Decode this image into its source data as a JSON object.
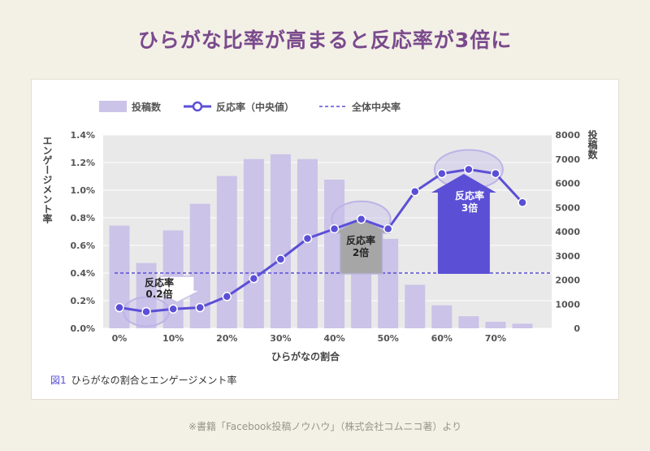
{
  "headline": "ひらがな比率が高まると反応率が3倍に",
  "caption": {
    "fig": "図1",
    "text": "ひらがなの割合とエンゲージメント率"
  },
  "footnote": "※書籍「Facebook投稿ノウハウ」（株式会社コムニコ著）より",
  "annotations": [
    {
      "id": "a1",
      "line1": "反応率",
      "line2": "0.2倍"
    },
    {
      "id": "a2",
      "line1": "反応率",
      "line2": "2倍"
    },
    {
      "id": "a3",
      "line1": "反応率",
      "line2": "3倍"
    }
  ],
  "colors": {
    "bar": "#cbc3e8",
    "line": "#5b4fd6",
    "median": "#5b4fd6",
    "title": "#7a4a8c",
    "plot_bg": "#e9e9e9"
  },
  "chart_data": {
    "type": "bar",
    "x": [
      0,
      5,
      10,
      15,
      20,
      25,
      30,
      35,
      40,
      45,
      50,
      55,
      60,
      65,
      70,
      75
    ],
    "xlabel": "ひらがなの割合",
    "xticks": [
      "0%",
      "10%",
      "20%",
      "30%",
      "40%",
      "50%",
      "60%",
      "70%"
    ],
    "ylabel_left": "エンゲージメント率",
    "yticks_left": [
      "0.0%",
      "0.2%",
      "0.4%",
      "0.6%",
      "0.8%",
      "1.0%",
      "1.2%",
      "1.4%"
    ],
    "ylim_left": [
      0,
      1.4
    ],
    "ylabel_right": "投稿数",
    "yticks_right": [
      "0",
      "1000",
      "2000",
      "3000",
      "4000",
      "5000",
      "6000",
      "7000",
      "8000"
    ],
    "ylim_right": [
      0,
      8000
    ],
    "legend": [
      "投稿数",
      "反応率（中央値）",
      "全体中央率"
    ],
    "legend_position": "top-left",
    "series": [
      {
        "name": "投稿数",
        "type": "bar",
        "axis": "right",
        "values": [
          4250,
          2700,
          4050,
          5150,
          6300,
          7000,
          7200,
          7000,
          6150,
          3950,
          3700,
          1800,
          950,
          500,
          270,
          190
        ]
      },
      {
        "name": "反応率（中央値）",
        "type": "line",
        "axis": "left",
        "values": [
          0.15,
          0.12,
          0.14,
          0.15,
          0.23,
          0.36,
          0.5,
          0.65,
          0.72,
          0.79,
          0.72,
          0.99,
          1.12,
          1.15,
          1.12,
          0.91
        ]
      },
      {
        "name": "全体中央率",
        "type": "hline",
        "axis": "left",
        "value": 0.4
      }
    ]
  }
}
